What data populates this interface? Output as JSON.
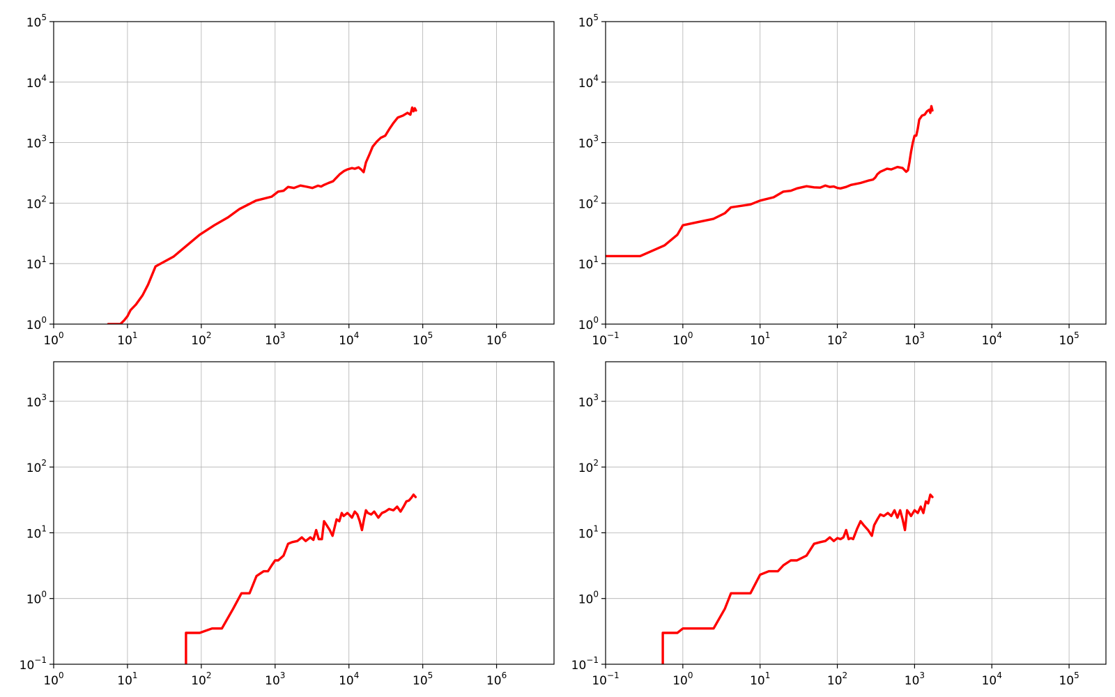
{
  "chart_data": [
    {
      "type": "line",
      "x_scale": "log",
      "y_scale": "log",
      "xlim": [
        1,
        6000000
      ],
      "ylim": [
        1,
        100000
      ],
      "grid": true,
      "x_ticks": [
        {
          "base": "10",
          "exp": "0"
        },
        {
          "base": "10",
          "exp": "1"
        },
        {
          "base": "10",
          "exp": "2"
        },
        {
          "base": "10",
          "exp": "3"
        },
        {
          "base": "10",
          "exp": "4"
        },
        {
          "base": "10",
          "exp": "5"
        },
        {
          "base": "10",
          "exp": "6"
        }
      ],
      "y_ticks": [
        {
          "base": "10",
          "exp": "0"
        },
        {
          "base": "10",
          "exp": "1"
        },
        {
          "base": "10",
          "exp": "2"
        },
        {
          "base": "10",
          "exp": "3"
        },
        {
          "base": "10",
          "exp": "4"
        },
        {
          "base": "10",
          "exp": "5"
        }
      ],
      "series": [
        {
          "color": "#ff0000",
          "x": [
            5.5,
            6.5,
            7,
            8,
            9,
            10,
            11,
            13,
            16,
            19,
            24,
            42,
            95,
            150,
            230,
            330,
            550,
            900,
            1100,
            1300,
            1500,
            1800,
            2200,
            2700,
            3200,
            3800,
            4200,
            4600,
            5300,
            6100,
            6400,
            6800,
            7500,
            8600,
            9500,
            11000,
            12000,
            13500,
            14800,
            15800,
            17000,
            19000,
            21000,
            24000,
            27000,
            31000,
            35000,
            40000,
            46000,
            54000,
            62000,
            68000,
            72000,
            75000,
            78000,
            81000
          ],
          "y": [
            1,
            1,
            0.95,
            1,
            1.15,
            1.35,
            1.7,
            2.1,
            3,
            4.5,
            9,
            13,
            30,
            43,
            58,
            80,
            110,
            128,
            155,
            160,
            185,
            178,
            195,
            186,
            178,
            194,
            188,
            200,
            215,
            230,
            245,
            265,
            300,
            340,
            360,
            380,
            370,
            390,
            355,
            325,
            470,
            640,
            860,
            1050,
            1200,
            1300,
            1650,
            2100,
            2600,
            2800,
            3100,
            2900,
            3800,
            3300,
            3700,
            3400
          ]
        }
      ]
    },
    {
      "type": "line",
      "x_scale": "log",
      "y_scale": "log",
      "xlim": [
        0.1,
        300000
      ],
      "ylim": [
        1,
        100000
      ],
      "grid": true,
      "x_ticks": [
        {
          "base": "10",
          "exp": "−1"
        },
        {
          "base": "10",
          "exp": "0"
        },
        {
          "base": "10",
          "exp": "1"
        },
        {
          "base": "10",
          "exp": "2"
        },
        {
          "base": "10",
          "exp": "3"
        },
        {
          "base": "10",
          "exp": "4"
        },
        {
          "base": "10",
          "exp": "5"
        }
      ],
      "y_ticks": [
        {
          "base": "10",
          "exp": "0"
        },
        {
          "base": "10",
          "exp": "1"
        },
        {
          "base": "10",
          "exp": "2"
        },
        {
          "base": "10",
          "exp": "3"
        },
        {
          "base": "10",
          "exp": "4"
        },
        {
          "base": "10",
          "exp": "5"
        }
      ],
      "series": [
        {
          "color": "#ff0000",
          "x": [
            0.1,
            0.28,
            0.58,
            0.85,
            1,
            1.5,
            2.5,
            3.5,
            4.2,
            7.5,
            10,
            15,
            20,
            25,
            30,
            40,
            50,
            60,
            70,
            80,
            90,
            100,
            110,
            130,
            150,
            200,
            250,
            290,
            310,
            330,
            360,
            400,
            440,
            500,
            600,
            700,
            780,
            820,
            860,
            900,
            950,
            1000,
            1050,
            1100,
            1150,
            1250,
            1350,
            1450,
            1550,
            1600,
            1650,
            1700
          ],
          "y": [
            13.3,
            13.3,
            20,
            30,
            43,
            48,
            55,
            68,
            85,
            95,
            110,
            125,
            155,
            160,
            175,
            190,
            182,
            180,
            195,
            185,
            188,
            178,
            175,
            185,
            200,
            215,
            235,
            245,
            265,
            300,
            330,
            350,
            370,
            360,
            395,
            380,
            330,
            350,
            480,
            700,
            1000,
            1300,
            1300,
            1700,
            2400,
            2800,
            2900,
            3300,
            3500,
            3100,
            4000,
            3400
          ]
        }
      ]
    },
    {
      "type": "line",
      "x_scale": "log",
      "y_scale": "log",
      "xlim": [
        1,
        6000000
      ],
      "ylim": [
        0.1,
        4000
      ],
      "grid": true,
      "x_ticks": [
        {
          "base": "10",
          "exp": "0"
        },
        {
          "base": "10",
          "exp": "1"
        },
        {
          "base": "10",
          "exp": "2"
        },
        {
          "base": "10",
          "exp": "3"
        },
        {
          "base": "10",
          "exp": "4"
        },
        {
          "base": "10",
          "exp": "5"
        },
        {
          "base": "10",
          "exp": "6"
        }
      ],
      "y_ticks": [
        {
          "base": "10",
          "exp": "−1"
        },
        {
          "base": "10",
          "exp": "0"
        },
        {
          "base": "10",
          "exp": "1"
        },
        {
          "base": "10",
          "exp": "2"
        },
        {
          "base": "10",
          "exp": "3"
        }
      ],
      "series": [
        {
          "color": "#ff0000",
          "x": [
            62,
            62,
            95,
            140,
            190,
            270,
            350,
            450,
            560,
            700,
            800,
            900,
            1000,
            1100,
            1300,
            1500,
            1700,
            2000,
            2300,
            2600,
            3000,
            3300,
            3600,
            3900,
            4300,
            4600,
            5000,
            5500,
            6000,
            6800,
            7400,
            8000,
            8500,
            9500,
            10000,
            11000,
            12000,
            13000,
            14000,
            15000,
            16000,
            17000,
            18000,
            20000,
            22000,
            25000,
            28000,
            31000,
            35000,
            40000,
            45000,
            50000,
            55000,
            60000,
            65000,
            70000,
            75000,
            80000
          ],
          "y": [
            0.1,
            0.3,
            0.3,
            0.35,
            0.35,
            0.7,
            1.2,
            1.2,
            2.2,
            2.6,
            2.6,
            3.2,
            3.8,
            3.8,
            4.5,
            6.8,
            7.2,
            7.5,
            8.5,
            7.5,
            8.5,
            7.8,
            11,
            8,
            8,
            15,
            13,
            11,
            9,
            16,
            15,
            20,
            18,
            20,
            19,
            17,
            21,
            19,
            15,
            11,
            16,
            22,
            20,
            19,
            21,
            17,
            20,
            21,
            23,
            22,
            25,
            21,
            25,
            30,
            31,
            34,
            38,
            35
          ]
        }
      ]
    },
    {
      "type": "line",
      "x_scale": "log",
      "y_scale": "log",
      "xlim": [
        0.1,
        300000
      ],
      "ylim": [
        0.1,
        4000
      ],
      "grid": true,
      "x_ticks": [
        {
          "base": "10",
          "exp": "−1"
        },
        {
          "base": "10",
          "exp": "0"
        },
        {
          "base": "10",
          "exp": "1"
        },
        {
          "base": "10",
          "exp": "2"
        },
        {
          "base": "10",
          "exp": "3"
        },
        {
          "base": "10",
          "exp": "4"
        },
        {
          "base": "10",
          "exp": "5"
        }
      ],
      "y_ticks": [
        {
          "base": "10",
          "exp": "−1"
        },
        {
          "base": "10",
          "exp": "0"
        },
        {
          "base": "10",
          "exp": "1"
        },
        {
          "base": "10",
          "exp": "2"
        },
        {
          "base": "10",
          "exp": "3"
        }
      ],
      "series": [
        {
          "color": "#ff0000",
          "x": [
            0.55,
            0.55,
            0.85,
            1,
            1.5,
            2.5,
            3.5,
            4.2,
            7.5,
            10,
            13,
            17,
            20,
            25,
            30,
            40,
            50,
            60,
            70,
            80,
            90,
            100,
            110,
            120,
            130,
            140,
            150,
            160,
            180,
            200,
            220,
            250,
            280,
            300,
            330,
            360,
            400,
            450,
            500,
            550,
            600,
            650,
            700,
            750,
            800,
            850,
            900,
            1000,
            1100,
            1200,
            1300,
            1400,
            1500,
            1600,
            1700
          ],
          "y": [
            0.1,
            0.3,
            0.3,
            0.35,
            0.35,
            0.35,
            0.7,
            1.2,
            1.2,
            2.3,
            2.6,
            2.6,
            3.2,
            3.8,
            3.8,
            4.5,
            6.8,
            7.2,
            7.5,
            8.5,
            7.5,
            8.3,
            8,
            8.5,
            11,
            8,
            8.3,
            8,
            11.5,
            15,
            13,
            11,
            9,
            13,
            16,
            19,
            18,
            20,
            18,
            22,
            17,
            22,
            16,
            11,
            22,
            20,
            18,
            22,
            20,
            25,
            20,
            30,
            28,
            38,
            35
          ]
        }
      ]
    }
  ]
}
